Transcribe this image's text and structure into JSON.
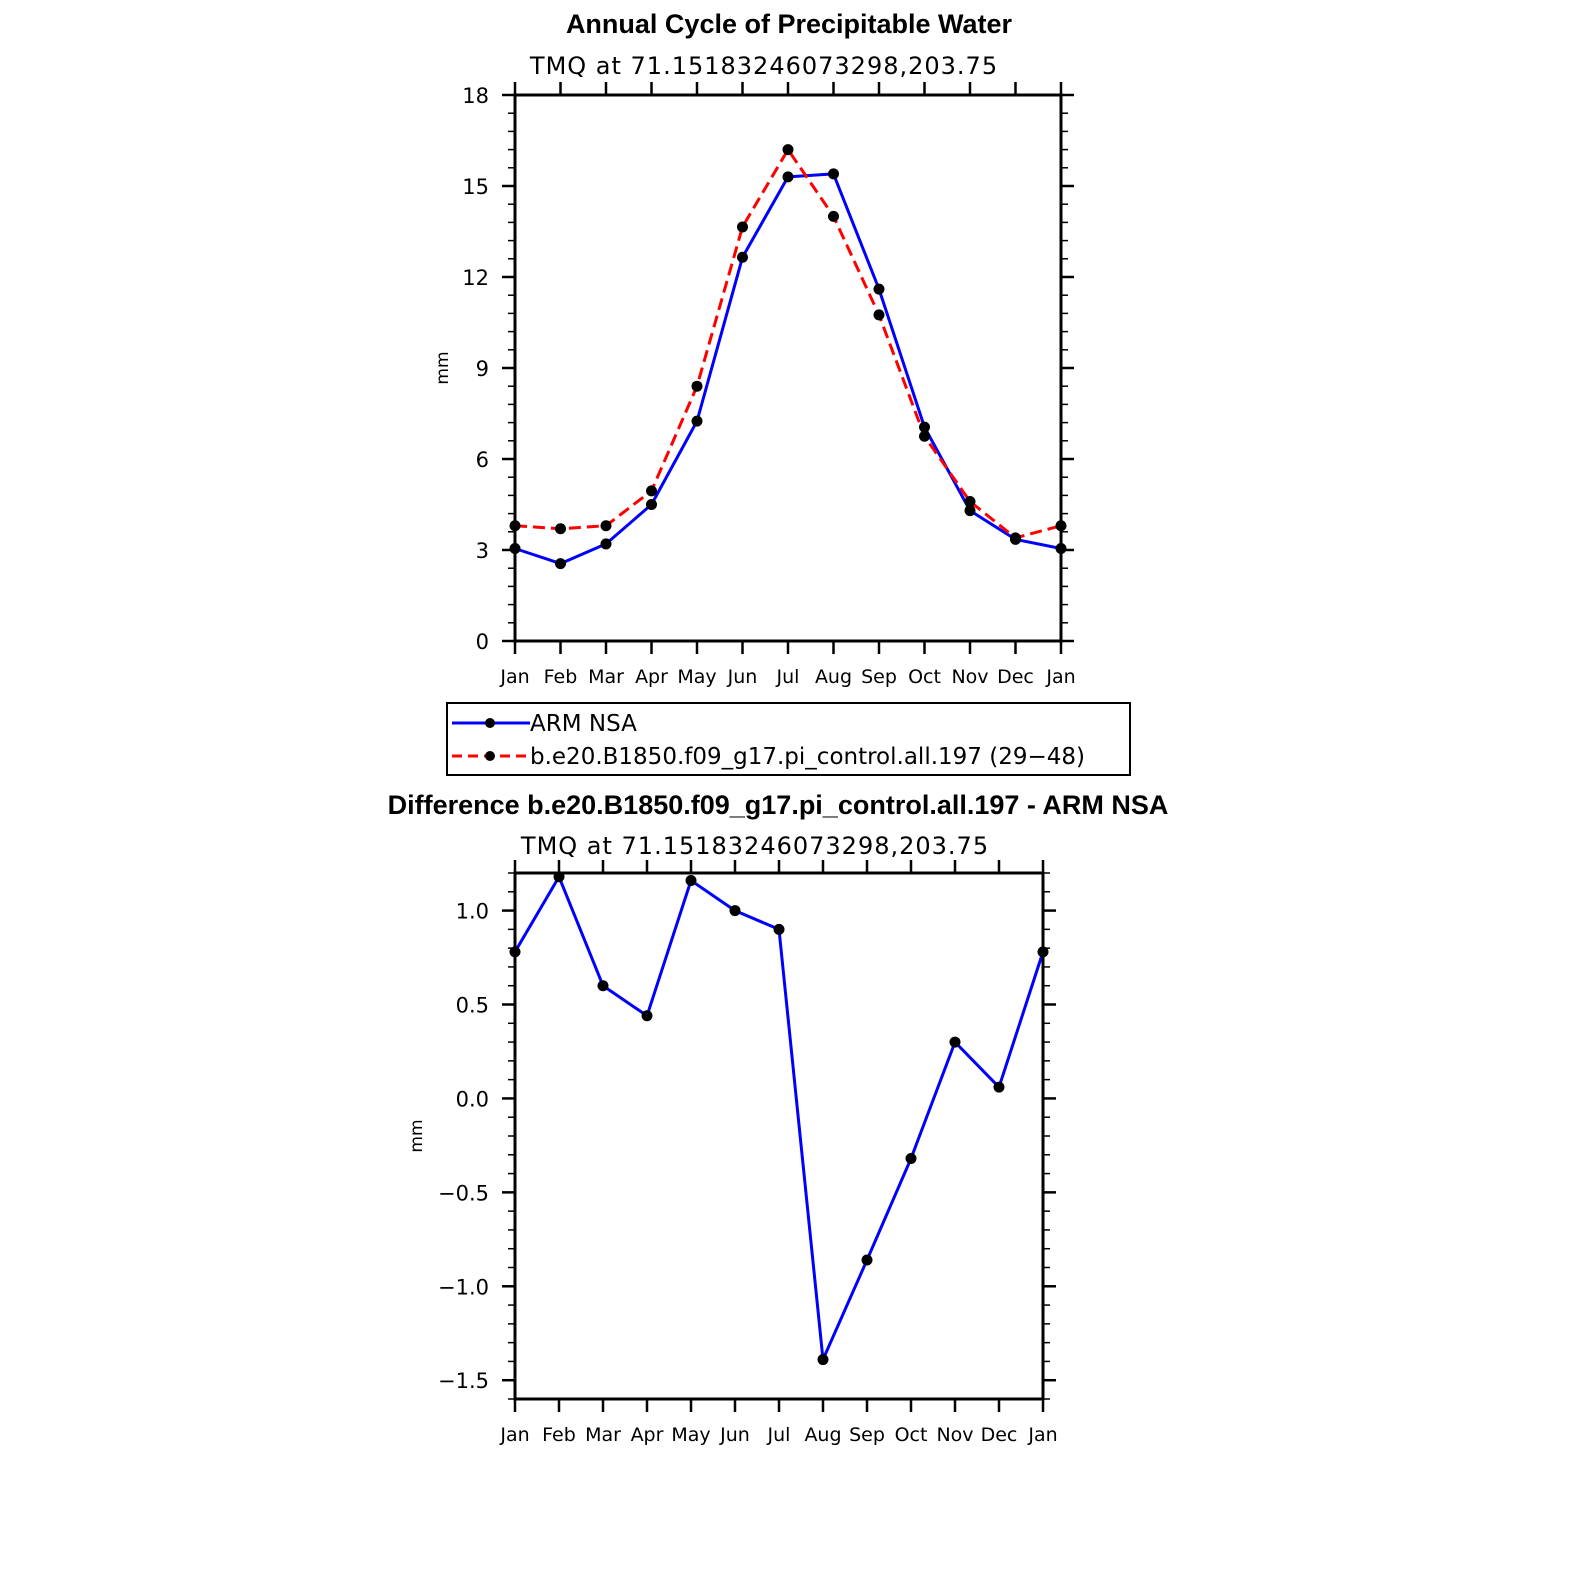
{
  "chart_data": [
    {
      "type": "line",
      "title": "Annual Cycle of Precipitable Water",
      "subtitle": "TMQ at 71.15183246073298,203.75",
      "ylabel": "mm",
      "ylim": [
        0,
        18
      ],
      "yticks": [
        0,
        3,
        6,
        9,
        12,
        15,
        18
      ],
      "ytick_labels": [
        "0",
        "3",
        "6",
        "9",
        "12",
        "15",
        "18"
      ],
      "categories": [
        "Jan",
        "Feb",
        "Mar",
        "Apr",
        "May",
        "Jun",
        "Jul",
        "Aug",
        "Sep",
        "Oct",
        "Nov",
        "Dec",
        "Jan"
      ],
      "series": [
        {
          "name": "ARM NSA",
          "color": "#0000ff",
          "dash": "solid",
          "values": [
            3.05,
            2.55,
            3.2,
            4.5,
            7.25,
            12.65,
            15.3,
            15.4,
            11.6,
            7.05,
            4.3,
            3.35,
            3.05
          ]
        },
        {
          "name": "b.e20.B1850.f09_g17.pi_control.all.197 (29−48)",
          "color": "#ff0000",
          "dash": "dashed",
          "values": [
            3.8,
            3.7,
            3.8,
            4.95,
            8.4,
            13.65,
            16.2,
            14.0,
            10.75,
            6.75,
            4.6,
            3.4,
            3.8
          ]
        }
      ],
      "legend": [
        {
          "label": "ARM NSA",
          "color": "#0000ff",
          "dash": "solid"
        },
        {
          "label": "b.e20.B1850.f09_g17.pi_control.all.197 (29−48)",
          "color": "#ff0000",
          "dash": "dashed"
        }
      ],
      "legend_position": "below"
    },
    {
      "type": "line",
      "title": "Difference b.e20.B1850.f09_g17.pi_control.all.197 - ARM NSA",
      "subtitle": "TMQ at 71.15183246073298,203.75",
      "ylabel": "mm",
      "ylim": [
        -1.6,
        1.2
      ],
      "yticks": [
        -1.5,
        -1.0,
        -0.5,
        0.0,
        0.5,
        1.0
      ],
      "ytick_labels": [
        "−1.5",
        "−1.0",
        "−0.5",
        "0.0",
        "0.5",
        "1.0"
      ],
      "categories": [
        "Jan",
        "Feb",
        "Mar",
        "Apr",
        "May",
        "Jun",
        "Jul",
        "Aug",
        "Sep",
        "Oct",
        "Nov",
        "Dec",
        "Jan"
      ],
      "series": [
        {
          "name": "Difference",
          "color": "#0000ff",
          "dash": "solid",
          "values": [
            0.78,
            1.18,
            0.6,
            0.44,
            1.16,
            1.0,
            0.9,
            -1.39,
            -0.86,
            -0.32,
            0.3,
            0.06,
            0.78
          ]
        }
      ]
    }
  ]
}
